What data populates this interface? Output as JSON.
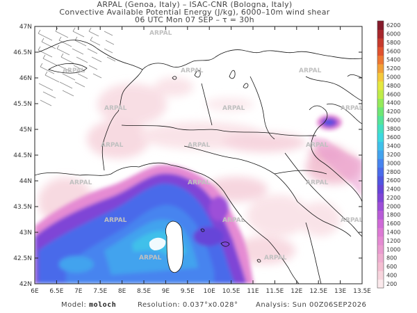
{
  "header": {
    "line1": "ARPAL (Genoa, Italy)  –  ISAC-CNR (Bologna, Italy)",
    "line2": "Convective Available Potential Energy (J/kg), 6000–10m wind shear",
    "line3": "06 UTC Mon 07 SEP  –  τ = 30h"
  },
  "map": {
    "lat_labels": [
      "47N",
      "46.5N",
      "46N",
      "45.5N",
      "45N",
      "44.5N",
      "44N",
      "43.5N",
      "43N",
      "42.5N",
      "42N"
    ],
    "lon_labels": [
      "6E",
      "6.5E",
      "7E",
      "7.5E",
      "8E",
      "8.5E",
      "9E",
      "9.5E",
      "10E",
      "10.5E",
      "11E",
      "11.5E",
      "12E",
      "12.5E",
      "13E",
      "13.5E"
    ],
    "watermark": "ARPAL"
  },
  "colorbar": {
    "levels": [
      "200",
      "400",
      "600",
      "800",
      "1000",
      "1200",
      "1400",
      "1600",
      "1800",
      "2000",
      "2200",
      "2400",
      "2600",
      "2800",
      "3000",
      "3200",
      "3400",
      "3600",
      "3800",
      "4000",
      "4200",
      "4400",
      "4600",
      "4800",
      "5000",
      "5200",
      "5400",
      "5600",
      "5800",
      "6000",
      "6200"
    ],
    "colors": [
      "#fbe9ec",
      "#f7d4dd",
      "#f4bfd2",
      "#efaed0",
      "#ea9cd0",
      "#e58bd3",
      "#dd7ad5",
      "#cf6ad8",
      "#b85cd8",
      "#9d4fd8",
      "#7f45d6",
      "#6645d8",
      "#5055e0",
      "#4a6bea",
      "#4784ef",
      "#43a3ee",
      "#3fc0ea",
      "#3dd8e0",
      "#44e0c2",
      "#55e49a",
      "#6fe775",
      "#95ea5a",
      "#bfec48",
      "#e4e840",
      "#f4c93c",
      "#f2a037",
      "#ee7733",
      "#e0522e",
      "#c63a2d",
      "#a7272c",
      "#851b2b"
    ]
  },
  "footer": {
    "model_label": "Model:",
    "model_value": "moloch",
    "resolution_label": "Resolution:",
    "resolution_value": "0.037°x0.028°",
    "analysis_label": "Analysis:",
    "analysis_value": "Sun 00Z06SEP2026"
  }
}
